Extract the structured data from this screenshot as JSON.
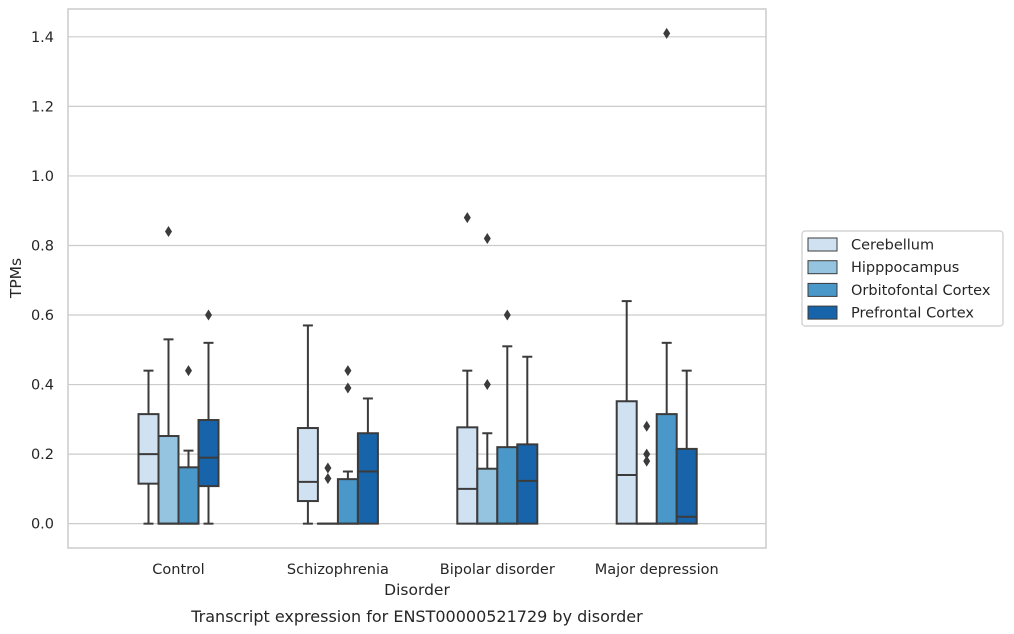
{
  "caption": "Transcript expression for ENST00000521729 by disorder",
  "chart_data": {
    "type": "box",
    "xlabel": "Disorder",
    "ylabel": "TPMs",
    "ylim": [
      -0.07,
      1.48
    ],
    "yticks": [
      "0.0",
      "0.2",
      "0.4",
      "0.6",
      "0.8",
      "1.0",
      "1.2",
      "1.4"
    ],
    "grid": "horizontal",
    "legend_position": "right",
    "categories": [
      "Control",
      "Schizophrenia",
      "Bipolar disorder",
      "Major depression"
    ],
    "series": [
      {
        "name": "Cerebellum",
        "color": "#d0e1f2",
        "boxes": [
          {
            "whisker_low": 0.0,
            "q1": 0.115,
            "median": 0.2,
            "q3": 0.315,
            "whisker_high": 0.44,
            "outliers": []
          },
          {
            "whisker_low": 0.0,
            "q1": 0.065,
            "median": 0.12,
            "q3": 0.275,
            "whisker_high": 0.57,
            "outliers": []
          },
          {
            "whisker_low": 0.0,
            "q1": 0.0,
            "median": 0.1,
            "q3": 0.277,
            "whisker_high": 0.44,
            "outliers": [
              0.88
            ]
          },
          {
            "whisker_low": 0.0,
            "q1": 0.0,
            "median": 0.14,
            "q3": 0.352,
            "whisker_high": 0.64,
            "outliers": []
          }
        ]
      },
      {
        "name": "Hipppocampus",
        "color": "#94c4df",
        "boxes": [
          {
            "whisker_low": 0.0,
            "q1": 0.0,
            "median": 0.0,
            "q3": 0.252,
            "whisker_high": 0.53,
            "outliers": [
              0.84
            ]
          },
          {
            "whisker_low": 0.0,
            "q1": 0.0,
            "median": 0.0,
            "q3": 0.0,
            "whisker_high": 0.0,
            "outliers": [
              0.13,
              0.16
            ]
          },
          {
            "whisker_low": 0.0,
            "q1": 0.0,
            "median": 0.0,
            "q3": 0.158,
            "whisker_high": 0.26,
            "outliers": [
              0.4,
              0.82
            ]
          },
          {
            "whisker_low": 0.0,
            "q1": 0.0,
            "median": 0.0,
            "q3": 0.0,
            "whisker_high": 0.0,
            "outliers": [
              0.18,
              0.2,
              0.28
            ]
          }
        ]
      },
      {
        "name": "Orbitofontal Cortex",
        "color": "#4a98c9",
        "boxes": [
          {
            "whisker_low": 0.0,
            "q1": 0.0,
            "median": 0.0,
            "q3": 0.162,
            "whisker_high": 0.21,
            "outliers": [
              0.44
            ]
          },
          {
            "whisker_low": 0.0,
            "q1": 0.0,
            "median": 0.0,
            "q3": 0.128,
            "whisker_high": 0.15,
            "outliers": [
              0.39,
              0.44
            ]
          },
          {
            "whisker_low": 0.0,
            "q1": 0.0,
            "median": 0.0,
            "q3": 0.22,
            "whisker_high": 0.51,
            "outliers": [
              0.6
            ]
          },
          {
            "whisker_low": 0.0,
            "q1": 0.0,
            "median": 0.0,
            "q3": 0.315,
            "whisker_high": 0.52,
            "outliers": [
              1.41
            ]
          }
        ]
      },
      {
        "name": "Prefrontal Cortex",
        "color": "#1764ab",
        "boxes": [
          {
            "whisker_low": 0.0,
            "q1": 0.108,
            "median": 0.19,
            "q3": 0.298,
            "whisker_high": 0.52,
            "outliers": [
              0.6
            ]
          },
          {
            "whisker_low": 0.0,
            "q1": 0.0,
            "median": 0.15,
            "q3": 0.26,
            "whisker_high": 0.36,
            "outliers": []
          },
          {
            "whisker_low": 0.0,
            "q1": 0.0,
            "median": 0.123,
            "q3": 0.228,
            "whisker_high": 0.48,
            "outliers": []
          },
          {
            "whisker_low": 0.0,
            "q1": 0.0,
            "median": 0.02,
            "q3": 0.215,
            "whisker_high": 0.44,
            "outliers": []
          }
        ]
      }
    ]
  }
}
